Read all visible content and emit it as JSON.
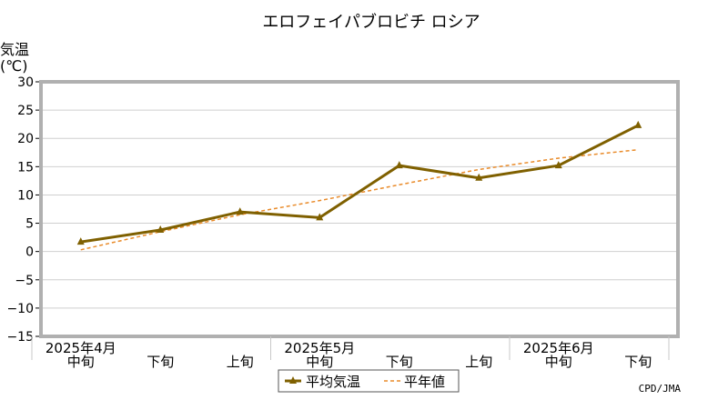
{
  "chart_data": {
    "type": "line",
    "title": "エロフェイパブロビチ ロシア",
    "ylabel": "気温",
    "yunit": "(℃)",
    "ylim": [
      -15,
      30
    ],
    "yticks": [
      30,
      25,
      20,
      15,
      10,
      5,
      0,
      -5,
      -10,
      -15
    ],
    "grid": true,
    "categories": [
      "中旬",
      "下旬",
      "上旬",
      "中旬",
      "下旬",
      "上旬",
      "中旬",
      "下旬"
    ],
    "month_labels": [
      {
        "label": "2025年4月",
        "at": 0
      },
      {
        "label": "2025年5月",
        "at": 3
      },
      {
        "label": "2025年6月",
        "at": 6
      }
    ],
    "series": [
      {
        "name": "平均気温",
        "values": [
          1.7,
          3.8,
          7.0,
          6.0,
          15.2,
          13.0,
          15.2,
          22.3
        ],
        "color": "#7f6000",
        "style": "solid",
        "marker": "triangle"
      },
      {
        "name": "平年値",
        "values": [
          0.3,
          3.5,
          6.5,
          9.0,
          11.8,
          14.5,
          16.5,
          18.0
        ],
        "color": "#e98b2a",
        "style": "dashed"
      }
    ],
    "legend_position": "bottom-center",
    "source": "CPD/JMA"
  }
}
